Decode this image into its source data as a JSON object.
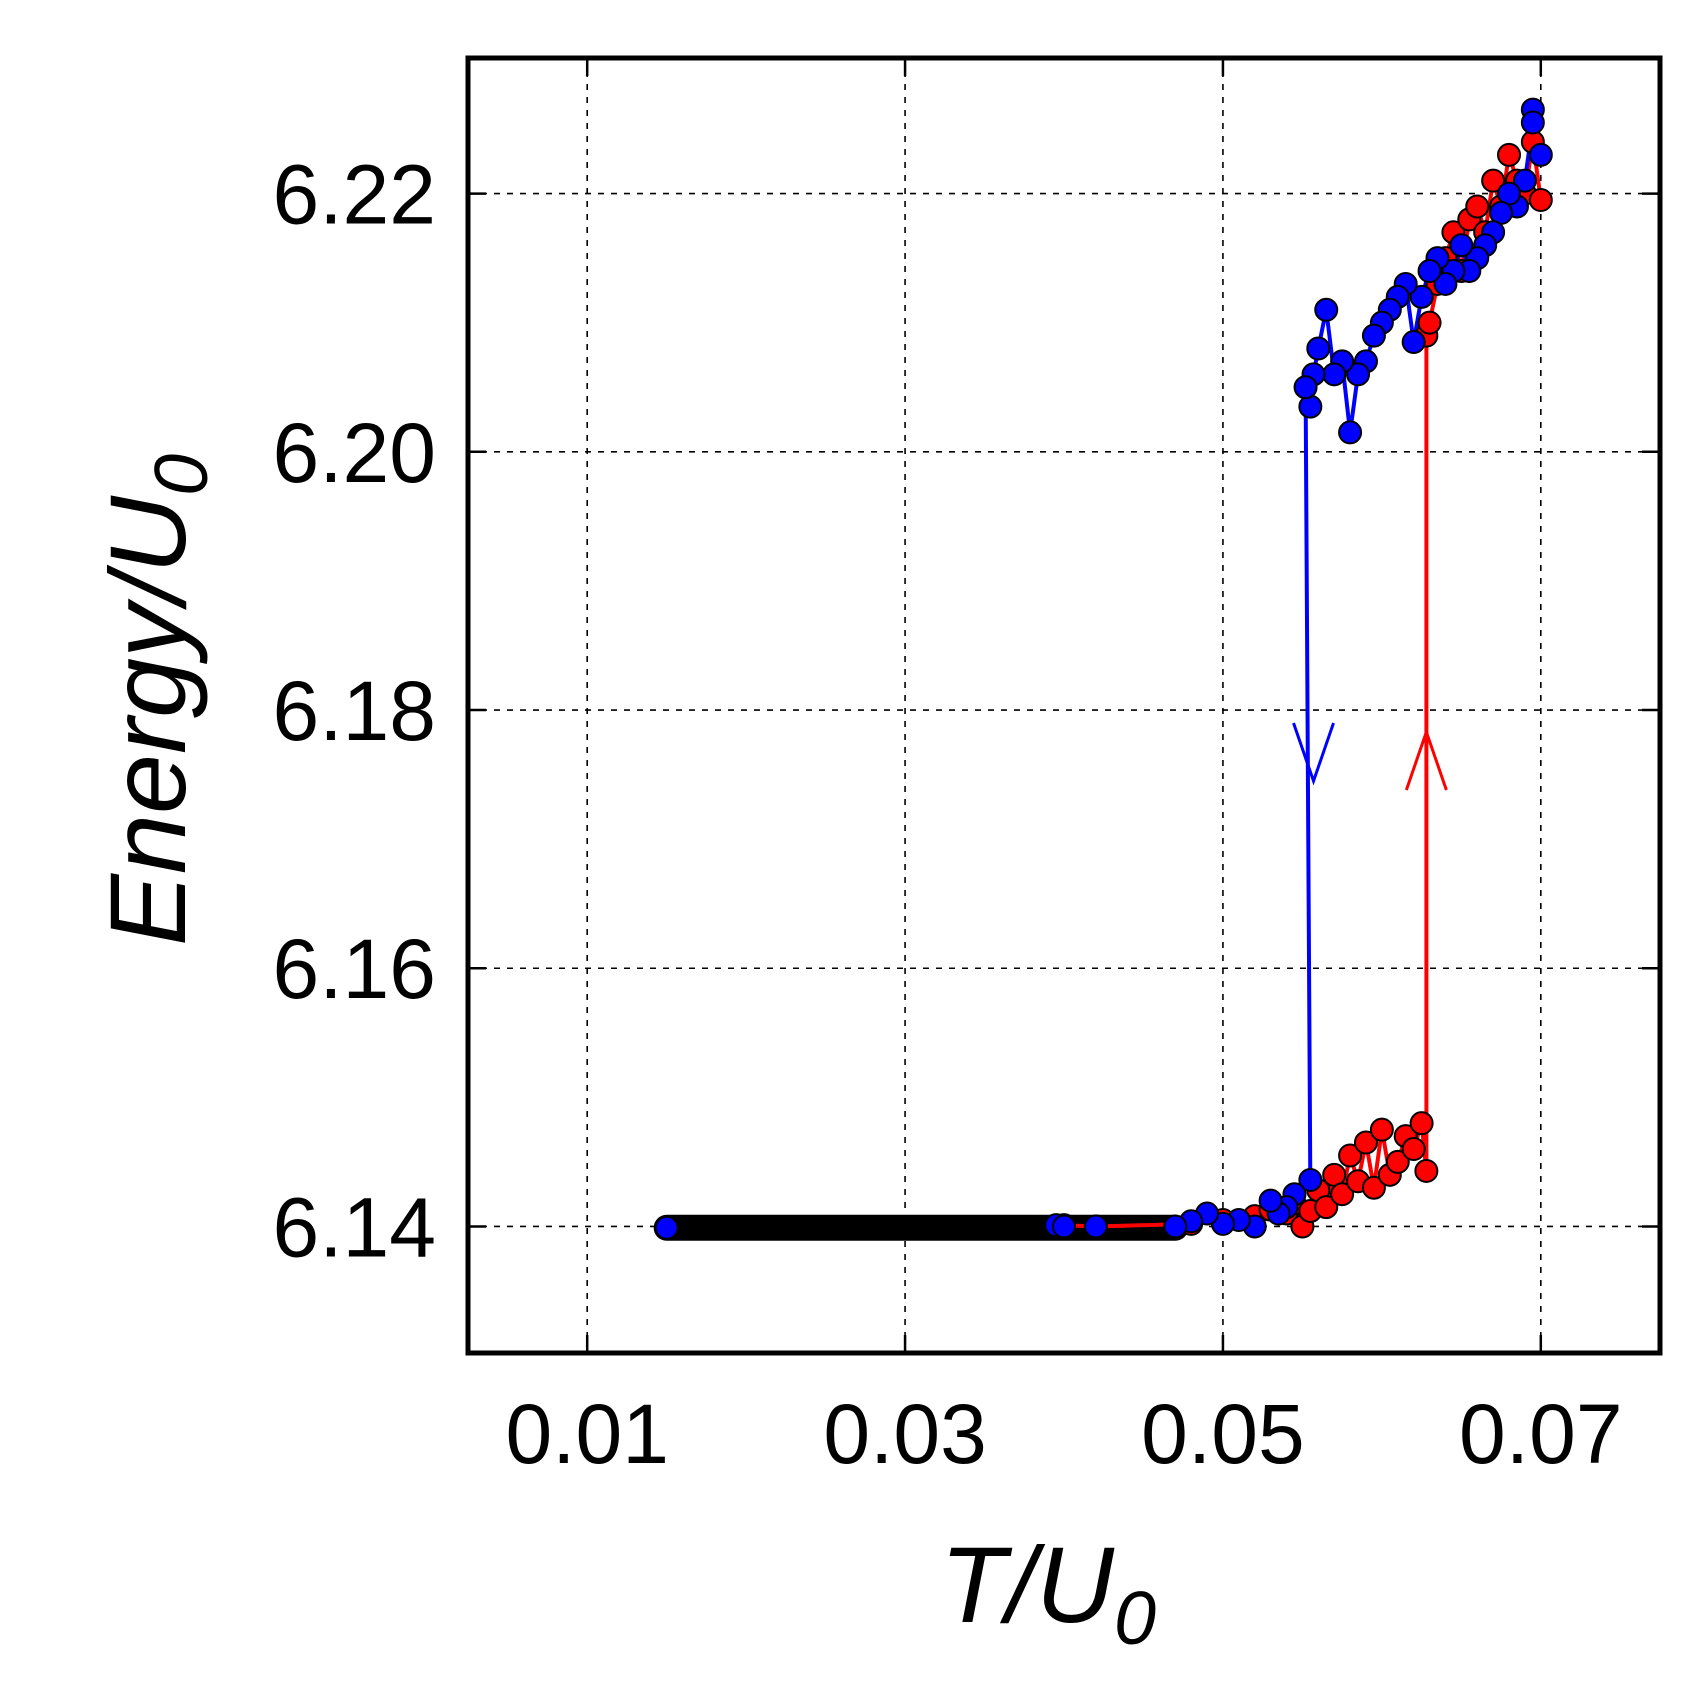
{
  "chart_data": {
    "type": "scatter",
    "xlabel": "T/U",
    "xlabel_sub": "0",
    "ylabel": "Energy/U",
    "ylabel_sub": "0",
    "xlim": [
      0.0025,
      0.0775
    ],
    "ylim": [
      6.1302,
      6.2305
    ],
    "xticks": [
      "0.01",
      "0.03",
      "0.05",
      "0.07"
    ],
    "yticks": [
      "6.14",
      "6.16",
      "6.18",
      "6.20",
      "6.22"
    ],
    "grid": true,
    "colors": {
      "heating": "#ff0000",
      "cooling": "#0000ff",
      "baseline": "#000000",
      "marker_edge": "#000000"
    },
    "baseline": {
      "x": [
        0.015,
        0.047
      ],
      "y": 6.1399
    },
    "series": [
      {
        "key": "heating",
        "x": [
          0.04,
          0.042,
          0.048,
          0.05,
          0.052,
          0.053,
          0.054,
          0.0545,
          0.055,
          0.0555,
          0.056,
          0.0565,
          0.057,
          0.0575,
          0.058,
          0.0585,
          0.059,
          0.0595,
          0.06,
          0.0605,
          0.061,
          0.0615,
          0.062,
          0.0625,
          0.0628,
          0.0628,
          0.063,
          0.0635,
          0.064,
          0.0645,
          0.065,
          0.0655,
          0.066,
          0.0665,
          0.067,
          0.0675,
          0.068,
          0.0685,
          0.069,
          0.0695,
          0.07
        ],
        "y": [
          6.1401,
          6.14,
          6.1402,
          6.1405,
          6.1408,
          6.1413,
          6.141,
          6.1418,
          6.14,
          6.1412,
          6.1428,
          6.1415,
          6.144,
          6.1425,
          6.1455,
          6.1435,
          6.1465,
          6.143,
          6.1475,
          6.144,
          6.145,
          6.147,
          6.146,
          6.148,
          6.1443,
          6.209,
          6.21,
          6.213,
          6.215,
          6.217,
          6.214,
          6.218,
          6.219,
          6.217,
          6.221,
          6.219,
          6.223,
          6.221,
          6.22,
          6.224,
          6.2195
        ]
      },
      {
        "key": "cooling",
        "x": [
          0.0695,
          0.07,
          0.0695,
          0.069,
          0.0685,
          0.068,
          0.0675,
          0.067,
          0.0665,
          0.066,
          0.0655,
          0.065,
          0.0645,
          0.064,
          0.0635,
          0.063,
          0.0625,
          0.062,
          0.0615,
          0.061,
          0.0605,
          0.06,
          0.0595,
          0.059,
          0.0585,
          0.058,
          0.0575,
          0.057,
          0.0565,
          0.056,
          0.0557,
          0.0555,
          0.0552,
          0.0555,
          0.0545,
          0.054,
          0.0535,
          0.053,
          0.052,
          0.051,
          0.05,
          0.049,
          0.048,
          0.047
        ],
        "y": [
          6.2265,
          6.223,
          6.2255,
          6.221,
          6.219,
          6.22,
          6.2185,
          6.217,
          6.216,
          6.215,
          6.214,
          6.216,
          6.214,
          6.213,
          6.215,
          6.214,
          6.212,
          6.2085,
          6.213,
          6.212,
          6.211,
          6.21,
          6.209,
          6.207,
          6.206,
          6.2015,
          6.207,
          6.206,
          6.211,
          6.208,
          6.206,
          6.2035,
          6.205,
          6.1436,
          6.1425,
          6.1415,
          6.141,
          6.142,
          6.14,
          6.1405,
          6.1402,
          6.141,
          6.1404,
          6.14
        ]
      }
    ],
    "isolated_cooling_point": {
      "x": 0.015,
      "y": 6.1399
    },
    "scatter_cluster_near_baseline": {
      "x": [
        0.0395,
        0.04,
        0.042
      ],
      "y": [
        6.1401,
        6.14,
        6.14
      ]
    },
    "annotations": [
      {
        "type": "arrow-down",
        "color": "#0000ff",
        "x": 0.0557,
        "y": 6.1745
      },
      {
        "type": "arrow-up",
        "color": "#ff0000",
        "x": 0.0628,
        "y": 6.1783
      }
    ]
  }
}
